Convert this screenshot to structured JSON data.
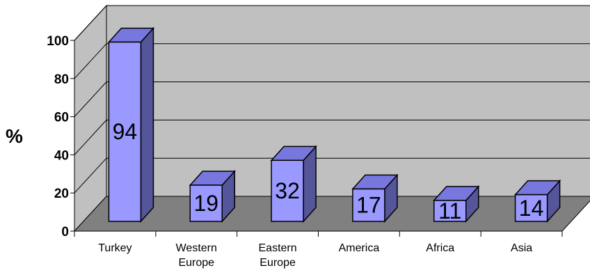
{
  "chart_data": {
    "type": "bar",
    "categories": [
      [
        "Turkey"
      ],
      [
        "Western",
        "Europe"
      ],
      [
        "Eastern",
        "Europe"
      ],
      [
        "America"
      ],
      [
        "Africa"
      ],
      [
        "Asia"
      ]
    ],
    "values": [
      94,
      19,
      32,
      17,
      11,
      14
    ],
    "data_labels": [
      "94",
      "19",
      "32",
      "17",
      "11",
      "14"
    ],
    "ylabel": "%",
    "ylim": [
      0,
      100
    ],
    "yticks": [
      "0",
      "20",
      "40",
      "60",
      "80",
      "100"
    ],
    "grid": true,
    "style": "3d",
    "colors": {
      "bar_front": "#9999ff",
      "bar_top": "#7777dd",
      "bar_side": "#55559a",
      "back_wall": "#c0c0c0",
      "floor": "#808080"
    }
  }
}
